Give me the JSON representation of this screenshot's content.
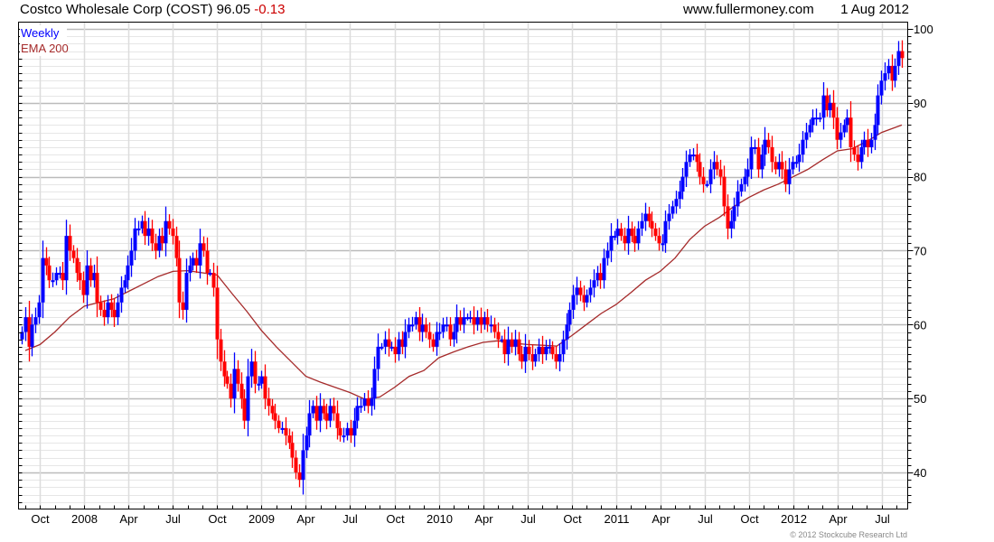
{
  "header": {
    "title": "Costco Wholesale Corp (COST)",
    "last_price": "96.05",
    "change": "-0.13",
    "site": "www.fullermoney.com",
    "date": "1 Aug 2012"
  },
  "copyright": "© 2012 Stockcube Research Ltd",
  "colors": {
    "up": "#0000ff",
    "down": "#ff0000",
    "ema": "#a52a2a",
    "change": "#cc0000",
    "grid_major": "#bbbbbb",
    "grid_minor": "#e6e6e6"
  },
  "chart_data": {
    "type": "candlestick",
    "title": "Costco Wholesale Corp (COST)",
    "legend": [
      {
        "label": "Weekly",
        "color": "#0000ff"
      },
      {
        "label": "EMA 200",
        "color": "#a52a2a"
      }
    ],
    "legend_position": "top-left",
    "ylim": [
      35.1,
      101
    ],
    "y_ticks": [
      40,
      50,
      60,
      70,
      80,
      90,
      100
    ],
    "x_tick_labels": [
      "Oct",
      "2008",
      "Apr",
      "Jul",
      "Oct",
      "2009",
      "Apr",
      "Jul",
      "Oct",
      "2010",
      "Apr",
      "Jul",
      "Oct",
      "2011",
      "Apr",
      "Jul",
      "Oct",
      "2012",
      "Apr",
      "Jul"
    ],
    "x_range": [
      "Sep 2007",
      "Aug 2012"
    ],
    "grid": true,
    "weekly_close": [
      59,
      61,
      57,
      60,
      61,
      63,
      69,
      68,
      66,
      66,
      67,
      67,
      66,
      72,
      70,
      69,
      67,
      66,
      64,
      68,
      66,
      67,
      63,
      62,
      61,
      63,
      62,
      61,
      63,
      65,
      66,
      68,
      70,
      73,
      73,
      74,
      72,
      73,
      71,
      70,
      72,
      71,
      74,
      73,
      72,
      69,
      63,
      62,
      67,
      68,
      69,
      68,
      71,
      70,
      67,
      67,
      65,
      58,
      55,
      53,
      52,
      50,
      54,
      52,
      50,
      47,
      53,
      55,
      52,
      52,
      53,
      50,
      49,
      48,
      47,
      46,
      46,
      45,
      44,
      42,
      40,
      39,
      43,
      45,
      48,
      49,
      47,
      49,
      48,
      47,
      49,
      48,
      46,
      45,
      45,
      46,
      45,
      47,
      49,
      49,
      50,
      49,
      50,
      54,
      57,
      57,
      58,
      57,
      57,
      56,
      58,
      57,
      59,
      60,
      60,
      61,
      59,
      60,
      59,
      58,
      57,
      59,
      59,
      60,
      60,
      58,
      59,
      61,
      60,
      61,
      61,
      61,
      60,
      61,
      60,
      61,
      60,
      60,
      59,
      58,
      58,
      56,
      58,
      57,
      58,
      56,
      55,
      57,
      56,
      55,
      56,
      57,
      56,
      57,
      57,
      56,
      55,
      56,
      58,
      60,
      62,
      64,
      65,
      64,
      63,
      64,
      65,
      66,
      67,
      66,
      69,
      70,
      72,
      72,
      73,
      72,
      71,
      73,
      72,
      71,
      73,
      74,
      75,
      74,
      73,
      72,
      71,
      71,
      74,
      75,
      76,
      77,
      78,
      80,
      82,
      83,
      83,
      82,
      80,
      79,
      79,
      81,
      82,
      81,
      80,
      76,
      73,
      74,
      76,
      78,
      79,
      80,
      81,
      84,
      84,
      81,
      83,
      85,
      84,
      82,
      81,
      82,
      81,
      79,
      81,
      82,
      82,
      83,
      85,
      86,
      87,
      88,
      88,
      88,
      91,
      89,
      90,
      88,
      85,
      86,
      87,
      88,
      84,
      83,
      82,
      84,
      85,
      84,
      85,
      87,
      91,
      93,
      94,
      95,
      93,
      95,
      97,
      96.05
    ],
    "ema_200_monthly": [
      56.5,
      57.3,
      59,
      61,
      62.5,
      63,
      63.5,
      64.5,
      65.5,
      66.5,
      67.2,
      67.3,
      67,
      66.7,
      64.2,
      61.8,
      59.2,
      57,
      55,
      53,
      52.2,
      51.5,
      50.8,
      49.9,
      50.2,
      51.5,
      53,
      53.8,
      55.5,
      56.3,
      57,
      57.6,
      57.8,
      57.5,
      57.3,
      57.2,
      57.1,
      58.5,
      60,
      61.5,
      62.7,
      64.3,
      66,
      67.2,
      69,
      71.5,
      73.3,
      74.5,
      76,
      77.2,
      78.2,
      79,
      80,
      81,
      82.3,
      83.5,
      83.8,
      84.8,
      86,
      87
    ]
  }
}
